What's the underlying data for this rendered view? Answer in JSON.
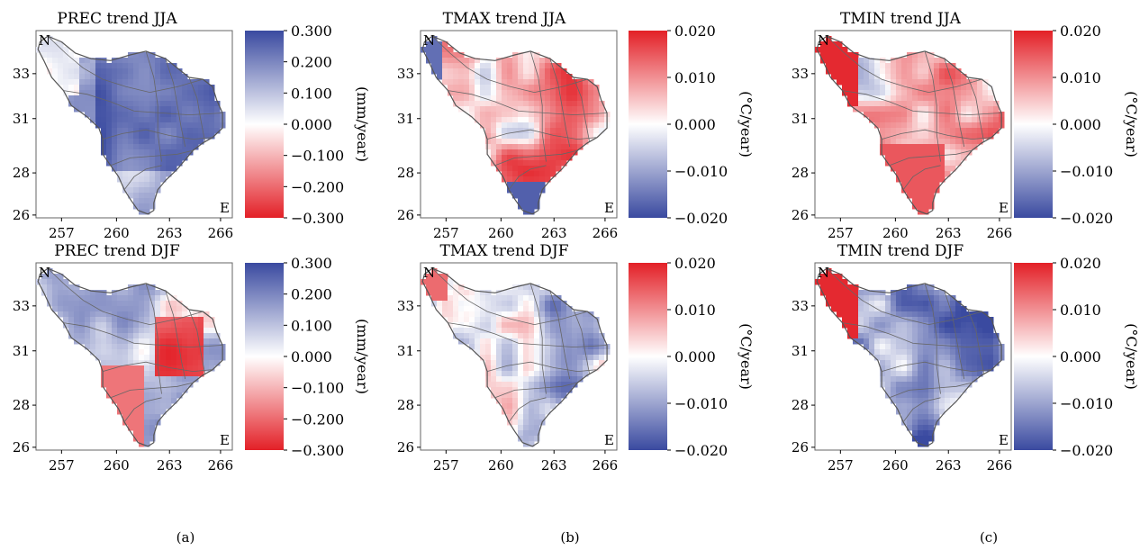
{
  "panels": [
    {
      "title": "PREC trend JJA",
      "cbar_ticks": [
        "0.300",
        "0.200",
        "0.100",
        "0.000",
        "−0.100",
        "−0.200",
        "−0.300"
      ],
      "cbar_label": "(mm/year)",
      "cmap": "prec",
      "pattern": "prec_jja"
    },
    {
      "title": "TMAX trend JJA",
      "cbar_ticks": [
        "0.020",
        "0.010",
        "0.000",
        "−0.010",
        "−0.020"
      ],
      "cbar_label": "(°C/year)",
      "cmap": "temp",
      "pattern": "tmax_jja"
    },
    {
      "title": "TMIN trend JJA",
      "cbar_ticks": [
        "0.020",
        "0.010",
        "0.000",
        "−0.010",
        "−0.020"
      ],
      "cbar_label": "(°C/year)",
      "cmap": "temp",
      "pattern": "tmin_jja"
    },
    {
      "title": "PREC trend DJF",
      "cbar_ticks": [
        "0.300",
        "0.200",
        "0.100",
        "0.000",
        "−0.100",
        "−0.200",
        "−0.300"
      ],
      "cbar_label": "(mm/year)",
      "cmap": "prec",
      "pattern": "prec_djf"
    },
    {
      "title": "TMAX trend DJF",
      "cbar_ticks": [
        "0.020",
        "0.010",
        "0.000",
        "−0.010",
        "−0.020"
      ],
      "cbar_label": "(°C/year)",
      "cmap": "temp",
      "pattern": "tmax_djf"
    },
    {
      "title": "TMIN trend DJF",
      "cbar_ticks": [
        "0.020",
        "0.010",
        "0.000",
        "−0.010",
        "−0.020"
      ],
      "cbar_label": "(°C/year)",
      "cmap": "temp",
      "pattern": "tmin_djf"
    }
  ],
  "x_ticks": [
    "257",
    "260",
    "263",
    "266"
  ],
  "y_ticks": [
    "33",
    "31",
    "28",
    "26"
  ],
  "corner_labels": {
    "north": "N",
    "east": "E"
  },
  "captions": [
    "(a)",
    "(b)",
    "(c)"
  ],
  "colors": {
    "blue": "#3a4aa0",
    "red": "#e32027",
    "white": "#ffffff"
  }
}
